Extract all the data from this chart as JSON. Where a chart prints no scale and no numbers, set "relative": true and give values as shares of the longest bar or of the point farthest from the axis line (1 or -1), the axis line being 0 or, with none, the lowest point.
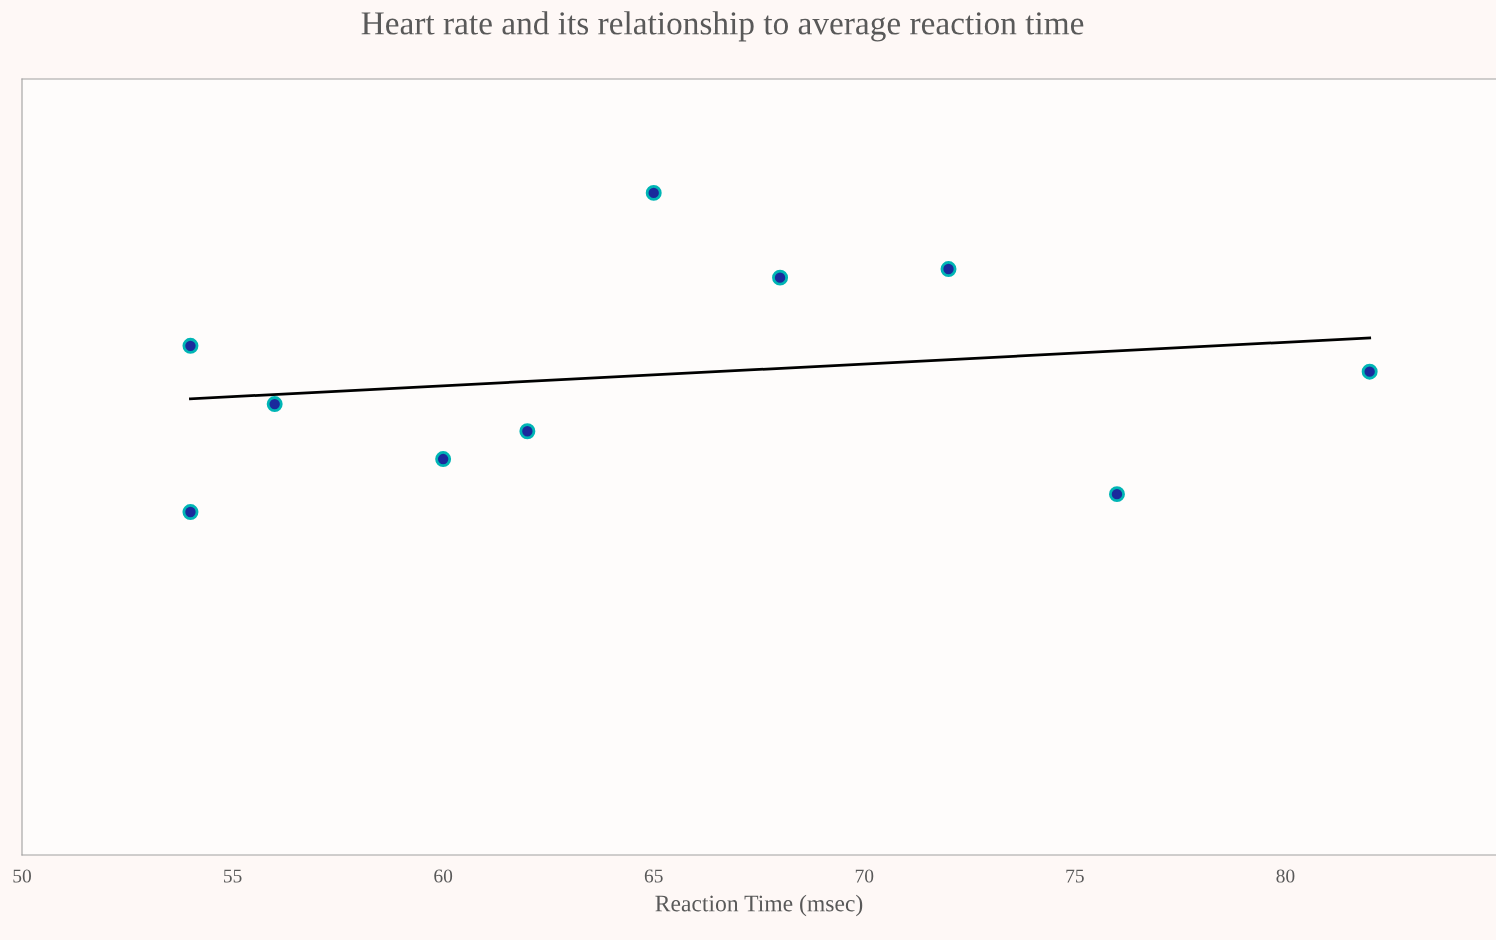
{
  "chart_data": {
    "type": "scatter",
    "title": "Heart rate and its relationship to average reaction time",
    "xlabel": "Reaction Time (msec)",
    "relative": true,
    "tick_labels": "x",
    "xlim": [
      50,
      85
    ],
    "xticks": [
      50,
      55,
      60,
      65,
      70,
      75,
      80
    ],
    "grid": false,
    "legend": false,
    "series": [
      {
        "marker": "circle",
        "color": "#1a2a9c",
        "x": [
          54,
          54,
          56,
          60,
          62,
          65,
          68,
          72,
          76,
          82
        ],
        "values": [
          0.769,
          0.518,
          0.681,
          0.598,
          0.64,
          1,
          0.872,
          0.885,
          0.545,
          0.73
        ]
      },
      {
        "type": "line",
        "color": "#000000",
        "x": [
          54,
          82
        ],
        "values": [
          0.689,
          0.781
        ]
      }
    ]
  }
}
